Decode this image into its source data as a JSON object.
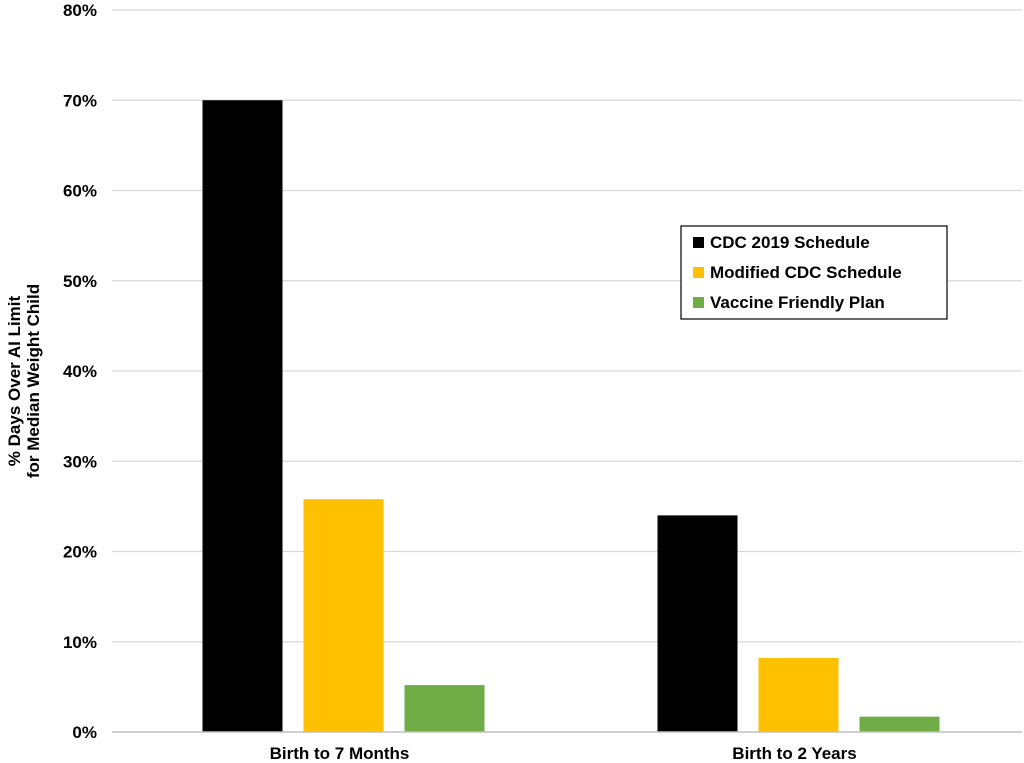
{
  "chart_data": {
    "type": "bar",
    "title": "",
    "xlabel": "",
    "ylabel_lines": [
      "% Days Over AI Limit",
      "for Median Weight Child"
    ],
    "ylim": [
      0,
      80
    ],
    "yticks": [
      0,
      10,
      20,
      30,
      40,
      50,
      60,
      70,
      80
    ],
    "ytick_labels": [
      "0%",
      "10%",
      "20%",
      "30%",
      "40%",
      "50%",
      "60%",
      "70%",
      "80%"
    ],
    "grid": true,
    "legend_position": "right",
    "categories": [
      "Birth to 7 Months",
      "Birth to 2 Years"
    ],
    "series": [
      {
        "name": "CDC 2019 Schedule",
        "color": "#000000",
        "values": [
          70,
          24
        ]
      },
      {
        "name": "Modified CDC Schedule",
        "color": "#FFC000",
        "values": [
          25.8,
          8.2
        ]
      },
      {
        "name": "Vaccine Friendly Plan",
        "color": "#70AD47",
        "values": [
          5.2,
          1.7
        ]
      }
    ]
  }
}
